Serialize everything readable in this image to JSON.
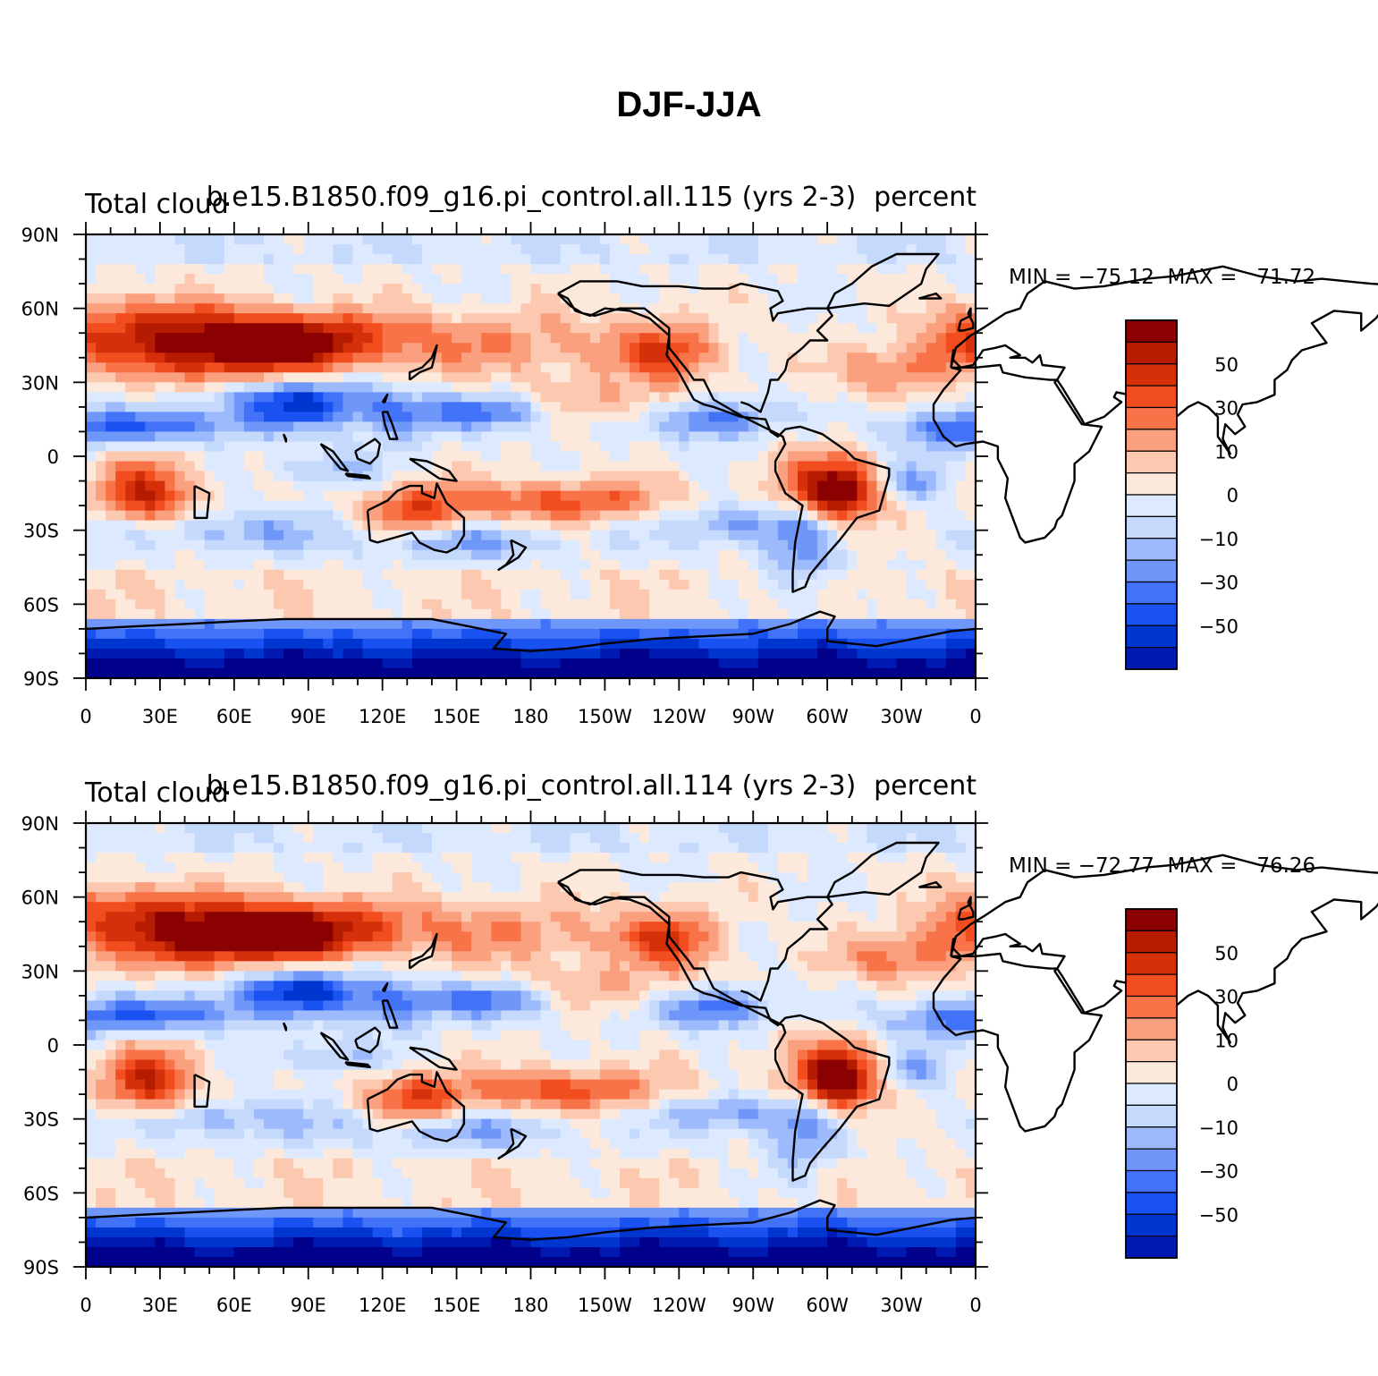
{
  "figure": {
    "title": "DJF-JJA",
    "colors": [
      "#00008b",
      "#0019b0",
      "#0036d0",
      "#1a52f2",
      "#4172f7",
      "#6f97f9",
      "#9dbafc",
      "#c5d9fd",
      "#dce9fe",
      "#fde9dc",
      "#fcc8b0",
      "#fba07f",
      "#f97349",
      "#f24d1e",
      "#d6300b",
      "#b51b00",
      "#8b0000"
    ],
    "land_outline_color": "#000000"
  },
  "panels": [
    {
      "id": "panel-1",
      "left_title": "Total cloud",
      "center_title": "b.e15.B1850.f09_g16.pi_control.all.115 (yrs 2-3)",
      "right_title": "percent",
      "stats": "MIN = −75.12  MAX =   71.72",
      "chart_data": {
        "type": "heatmap",
        "variable": "Total cloud",
        "units": "percent",
        "season_difference": "DJF-JJA",
        "lon_ticks": [
          "0",
          "30E",
          "60E",
          "90E",
          "120E",
          "150E",
          "180",
          "150W",
          "120W",
          "90W",
          "60W",
          "30W",
          "0"
        ],
        "lat_ticks": [
          "90N",
          "60N",
          "30N",
          "0",
          "30S",
          "60S",
          "90S"
        ],
        "colorbar_labels": [
          "50",
          "30",
          "10",
          "0",
          "−10",
          "−30",
          "−50"
        ],
        "min": -75.12,
        "max": 71.72,
        "seed": 115
      }
    },
    {
      "id": "panel-2",
      "left_title": "Total cloud",
      "center_title": "b.e15.B1850.f09_g16.pi_control.all.114 (yrs 2-3)",
      "right_title": "percent",
      "stats": "MIN = −72.77  MAX =   76.26",
      "chart_data": {
        "type": "heatmap",
        "variable": "Total cloud",
        "units": "percent",
        "season_difference": "DJF-JJA",
        "lon_ticks": [
          "0",
          "30E",
          "60E",
          "90E",
          "120E",
          "150E",
          "180",
          "150W",
          "120W",
          "90W",
          "60W",
          "30W",
          "0"
        ],
        "lat_ticks": [
          "90N",
          "60N",
          "30N",
          "0",
          "30S",
          "60S",
          "90S"
        ],
        "colorbar_labels": [
          "50",
          "30",
          "10",
          "0",
          "−10",
          "−30",
          "−50"
        ],
        "min": -72.77,
        "max": 76.26,
        "seed": 114
      }
    }
  ]
}
